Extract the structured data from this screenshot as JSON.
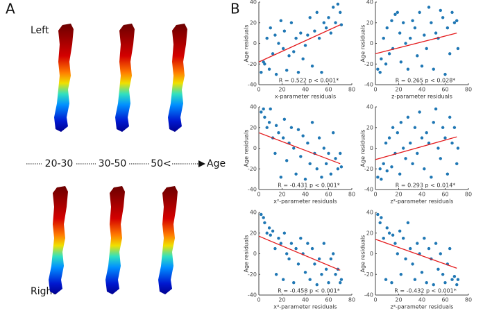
{
  "figure": {
    "panel_a": "A",
    "panel_b": "B",
    "left": "Left",
    "right": "Right",
    "ages": [
      "20-30",
      "30-50",
      "50<"
    ],
    "arrow_label": "Age"
  },
  "chart_data": [
    {
      "type": "scatter",
      "y_label": "Age residuals",
      "x_label": "x-parameter residuals",
      "annotation": "R = 0.522 p < 0.001*",
      "color": "#1f77b4",
      "x": [
        2,
        4,
        5,
        7,
        9,
        10,
        12,
        14,
        15,
        17,
        19,
        21,
        22,
        24,
        26,
        28,
        30,
        32,
        34,
        36,
        38,
        40,
        42,
        44,
        46,
        48,
        50,
        52,
        54,
        56,
        58,
        60,
        62,
        64,
        66,
        68,
        70,
        71
      ],
      "y": [
        -28,
        -18,
        -20,
        5,
        -25,
        15,
        -10,
        8,
        -30,
        0,
        22,
        -5,
        12,
        -26,
        -12,
        20,
        -8,
        5,
        -28,
        10,
        -15,
        -2,
        8,
        25,
        -22,
        12,
        30,
        5,
        -28,
        20,
        15,
        25,
        10,
        35,
        20,
        38,
        30,
        18
      ],
      "fit": {
        "color": "#e41a1c",
        "x": [
          0,
          70
        ],
        "y": [
          -18,
          18
        ]
      },
      "xlim": [
        0,
        80
      ],
      "ylim": [
        -40,
        40
      ],
      "xticks": [
        0,
        20,
        40,
        60,
        80
      ],
      "yticks": [
        -40,
        -20,
        0,
        20,
        40
      ]
    },
    {
      "type": "scatter",
      "y_label": "Age residuals",
      "x_label": "z-parameter residuals",
      "annotation": "R = 0.265 p < 0.028*",
      "color": "#1f77b4",
      "x": [
        2,
        4,
        5,
        7,
        9,
        10,
        12,
        14,
        15,
        17,
        19,
        21,
        22,
        24,
        26,
        28,
        30,
        32,
        34,
        36,
        38,
        40,
        42,
        44,
        46,
        48,
        50,
        52,
        54,
        56,
        58,
        60,
        62,
        64,
        66,
        68,
        70,
        71
      ],
      "y": [
        -25,
        -28,
        -15,
        5,
        -20,
        15,
        -10,
        22,
        -5,
        28,
        30,
        10,
        -18,
        20,
        0,
        -25,
        5,
        22,
        15,
        -12,
        30,
        -22,
        8,
        -5,
        35,
        20,
        -25,
        10,
        5,
        32,
        25,
        -30,
        15,
        -10,
        30,
        20,
        22,
        -5
      ],
      "fit": {
        "color": "#e41a1c",
        "x": [
          0,
          70
        ],
        "y": [
          -10,
          10
        ]
      },
      "xlim": [
        0,
        80
      ],
      "ylim": [
        -40,
        40
      ],
      "xticks": [
        0,
        20,
        40,
        60,
        80
      ],
      "yticks": [
        -40,
        -20,
        0,
        20,
        40
      ]
    },
    {
      "type": "scatter",
      "y_label": "Age residuals",
      "x_label": "x²-parameter residuals",
      "annotation": "R = -0.431 p < 0.001*",
      "color": "#1f77b4",
      "x": [
        2,
        4,
        5,
        7,
        9,
        10,
        12,
        14,
        15,
        17,
        19,
        21,
        22,
        24,
        26,
        28,
        30,
        32,
        34,
        36,
        38,
        40,
        42,
        44,
        46,
        48,
        50,
        52,
        54,
        56,
        58,
        60,
        62,
        64,
        66,
        68,
        70,
        71
      ],
      "y": [
        35,
        38,
        30,
        20,
        25,
        38,
        10,
        -5,
        22,
        15,
        -28,
        10,
        28,
        -12,
        5,
        20,
        0,
        -25,
        18,
        -8,
        12,
        -30,
        5,
        -15,
        25,
        -5,
        -20,
        10,
        -28,
        0,
        -15,
        -5,
        -25,
        15,
        -10,
        -20,
        -5,
        -18
      ],
      "fit": {
        "color": "#e41a1c",
        "x": [
          0,
          70
        ],
        "y": [
          15,
          -15
        ]
      },
      "xlim": [
        0,
        80
      ],
      "ylim": [
        -40,
        40
      ],
      "xticks": [
        0,
        20,
        40,
        60,
        80
      ],
      "yticks": [
        -40,
        -20,
        0,
        20,
        40
      ]
    },
    {
      "type": "scatter",
      "y_label": "Age residuals",
      "x_label": "z²-parameter residuals",
      "annotation": "R = 0.293 p < 0.014*",
      "color": "#1f77b4",
      "x": [
        2,
        4,
        5,
        7,
        9,
        10,
        12,
        14,
        15,
        17,
        19,
        21,
        22,
        24,
        26,
        28,
        30,
        32,
        34,
        36,
        38,
        40,
        42,
        44,
        46,
        48,
        50,
        52,
        54,
        56,
        58,
        60,
        62,
        64,
        66,
        68,
        70,
        71
      ],
      "y": [
        -28,
        -20,
        -30,
        -15,
        5,
        -22,
        10,
        -18,
        20,
        -5,
        15,
        -25,
        25,
        0,
        -10,
        30,
        5,
        -15,
        20,
        -5,
        35,
        10,
        -20,
        15,
        5,
        -28,
        25,
        38,
        0,
        -10,
        20,
        10,
        -25,
        30,
        5,
        20,
        -15,
        0
      ],
      "fit": {
        "color": "#e41a1c",
        "x": [
          0,
          70
        ],
        "y": [
          -11,
          11
        ]
      },
      "xlim": [
        0,
        80
      ],
      "ylim": [
        -40,
        40
      ],
      "xticks": [
        0,
        20,
        40,
        60,
        80
      ],
      "yticks": [
        -40,
        -20,
        0,
        20,
        40
      ]
    },
    {
      "type": "scatter",
      "y_label": "Age residuals",
      "x_label": "x³-parameter residuals",
      "annotation": "R = -0.458 p < 0.001*",
      "color": "#1f77b4",
      "x": [
        2,
        4,
        5,
        7,
        9,
        10,
        12,
        14,
        15,
        17,
        19,
        21,
        22,
        24,
        26,
        28,
        30,
        32,
        34,
        36,
        38,
        40,
        42,
        44,
        46,
        48,
        50,
        52,
        54,
        56,
        58,
        60,
        62,
        64,
        66,
        68,
        70,
        71
      ],
      "y": [
        38,
        35,
        30,
        20,
        25,
        18,
        22,
        5,
        -20,
        15,
        10,
        -25,
        20,
        0,
        -5,
        10,
        -28,
        5,
        -10,
        15,
        0,
        -18,
        10,
        -25,
        5,
        -10,
        -30,
        -5,
        -20,
        10,
        -15,
        -28,
        -5,
        0,
        -20,
        -15,
        -28,
        -25
      ],
      "fit": {
        "color": "#e41a1c",
        "x": [
          0,
          70
        ],
        "y": [
          17,
          -16
        ]
      },
      "xlim": [
        0,
        80
      ],
      "ylim": [
        -40,
        40
      ],
      "xticks": [
        0,
        20,
        40,
        60,
        80
      ],
      "yticks": [
        -40,
        -20,
        0,
        20,
        40
      ]
    },
    {
      "type": "scatter",
      "y_label": "Age residuals",
      "x_label": "z³-parameter residuals",
      "annotation": "R = -0.432 p < 0.001*",
      "color": "#1f77b4",
      "x": [
        2,
        4,
        5,
        7,
        9,
        10,
        12,
        14,
        15,
        17,
        19,
        21,
        22,
        24,
        26,
        28,
        30,
        32,
        34,
        36,
        38,
        40,
        42,
        44,
        46,
        48,
        50,
        52,
        54,
        56,
        58,
        60,
        62,
        64,
        66,
        68,
        70,
        71
      ],
      "y": [
        38,
        30,
        35,
        15,
        -25,
        25,
        20,
        -28,
        18,
        10,
        0,
        22,
        -20,
        15,
        -5,
        30,
        5,
        -10,
        -25,
        10,
        0,
        -18,
        15,
        -28,
        5,
        -5,
        -30,
        10,
        -15,
        0,
        -20,
        -28,
        -10,
        5,
        -25,
        -22,
        -30,
        -25
      ],
      "fit": {
        "color": "#e41a1c",
        "x": [
          0,
          70
        ],
        "y": [
          14,
          -14
        ]
      },
      "xlim": [
        0,
        80
      ],
      "ylim": [
        -40,
        40
      ],
      "xticks": [
        0,
        20,
        40,
        60,
        80
      ],
      "yticks": [
        -40,
        -20,
        0,
        20,
        40
      ]
    }
  ]
}
